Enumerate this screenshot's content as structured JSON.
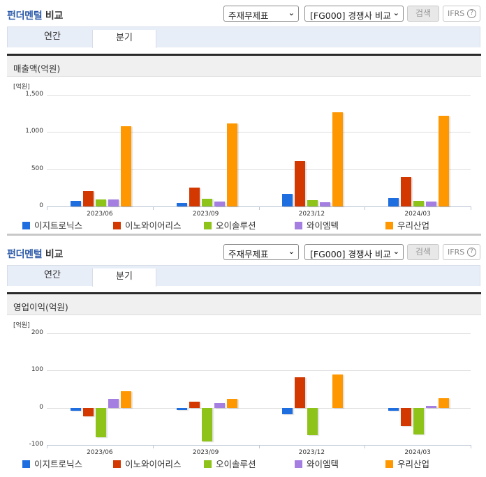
{
  "colors": {
    "title_blue": "#2c5aa9",
    "series": [
      "#1f6ee0",
      "#d23800",
      "#8ec41a",
      "#a47ee0",
      "#ff9800"
    ]
  },
  "header": {
    "title_part1": "펀더멘털",
    "title_part2": "비교",
    "select_statement": "주재무제표",
    "select_group": "[FG000] 경쟁사 비교",
    "search_button": "검색",
    "ifrs_button": "IFRS",
    "help_icon": "?"
  },
  "tabs": [
    {
      "label": "연간",
      "active": false
    },
    {
      "label": "분기",
      "active": true
    }
  ],
  "legend": [
    "이지트로닉스",
    "이노와이어리스",
    "오이솔루션",
    "와이엠텍",
    "우리산업"
  ],
  "chart_data": [
    {
      "type": "bar",
      "title": "매출액(억원)",
      "ylabel": "[억원]",
      "xlabel": "",
      "categories": [
        "2023/06",
        "2023/09",
        "2023/12",
        "2024/03"
      ],
      "ylim": [
        0,
        1500
      ],
      "yticks": [
        "1,500",
        "1,000",
        "500",
        "0"
      ],
      "ytick_values": [
        1500,
        1000,
        500,
        0
      ],
      "grid": true,
      "legend_position": "bottom",
      "series": [
        {
          "name": "이지트로닉스",
          "values": [
            77,
            50,
            172,
            110
          ]
        },
        {
          "name": "이노와이어리스",
          "values": [
            202,
            254,
            608,
            396
          ]
        },
        {
          "name": "오이솔루션",
          "values": [
            96,
            105,
            87,
            79
          ]
        },
        {
          "name": "와이엠텍",
          "values": [
            96,
            68,
            59,
            70
          ]
        },
        {
          "name": "우리산업",
          "values": [
            1075,
            1112,
            1262,
            1215
          ]
        }
      ]
    },
    {
      "type": "bar",
      "title": "영업이익(억원)",
      "ylabel": "[억원]",
      "xlabel": "",
      "categories": [
        "2023/06",
        "2023/09",
        "2023/12",
        "2024/03"
      ],
      "ylim": [
        -100,
        200
      ],
      "yticks": [
        "200",
        "100",
        "0",
        "-100"
      ],
      "ytick_values": [
        200,
        100,
        0,
        -100
      ],
      "grid": true,
      "legend_position": "bottom",
      "series": [
        {
          "name": "이지트로닉스",
          "values": [
            -9,
            -7,
            -18,
            -9
          ]
        },
        {
          "name": "이노와이어리스",
          "values": [
            -23,
            17,
            81,
            -49
          ]
        },
        {
          "name": "오이솔루션",
          "values": [
            -79,
            -90,
            -74,
            -72
          ]
        },
        {
          "name": "와이엠텍",
          "values": [
            23,
            12,
            0,
            5
          ]
        },
        {
          "name": "우리산업",
          "values": [
            44,
            23,
            90,
            25
          ]
        }
      ]
    }
  ]
}
